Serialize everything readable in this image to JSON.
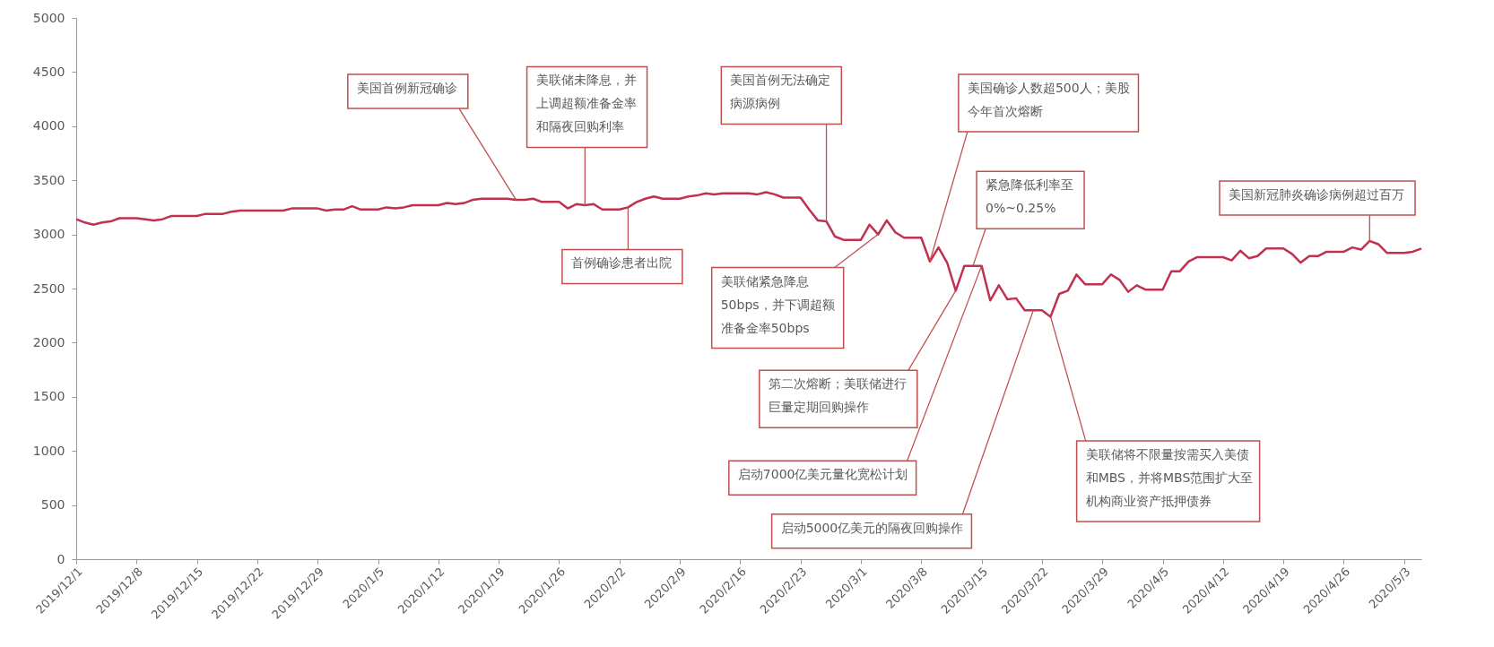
{
  "chart_data": {
    "type": "line",
    "x": [
      "2019-12-01",
      "2019-12-02",
      "2019-12-03",
      "2019-12-04",
      "2019-12-05",
      "2019-12-06",
      "2019-12-07",
      "2019-12-08",
      "2019-12-09",
      "2019-12-10",
      "2019-12-11",
      "2019-12-12",
      "2019-12-13",
      "2019-12-14",
      "2019-12-15",
      "2019-12-16",
      "2019-12-17",
      "2019-12-18",
      "2019-12-19",
      "2019-12-20",
      "2019-12-21",
      "2019-12-22",
      "2019-12-23",
      "2019-12-24",
      "2019-12-25",
      "2019-12-26",
      "2019-12-27",
      "2019-12-28",
      "2019-12-29",
      "2019-12-30",
      "2019-12-31",
      "2020-01-01",
      "2020-01-02",
      "2020-01-03",
      "2020-01-04",
      "2020-01-05",
      "2020-01-06",
      "2020-01-07",
      "2020-01-08",
      "2020-01-09",
      "2020-01-10",
      "2020-01-11",
      "2020-01-12",
      "2020-01-13",
      "2020-01-14",
      "2020-01-15",
      "2020-01-16",
      "2020-01-17",
      "2020-01-18",
      "2020-01-19",
      "2020-01-20",
      "2020-01-21",
      "2020-01-22",
      "2020-01-23",
      "2020-01-24",
      "2020-01-25",
      "2020-01-26",
      "2020-01-27",
      "2020-01-28",
      "2020-01-29",
      "2020-01-30",
      "2020-01-31",
      "2020-02-01",
      "2020-02-02",
      "2020-02-03",
      "2020-02-04",
      "2020-02-05",
      "2020-02-06",
      "2020-02-07",
      "2020-02-08",
      "2020-02-09",
      "2020-02-10",
      "2020-02-11",
      "2020-02-12",
      "2020-02-13",
      "2020-02-14",
      "2020-02-15",
      "2020-02-16",
      "2020-02-17",
      "2020-02-18",
      "2020-02-19",
      "2020-02-20",
      "2020-02-21",
      "2020-02-22",
      "2020-02-23",
      "2020-02-24",
      "2020-02-25",
      "2020-02-26",
      "2020-02-27",
      "2020-02-28",
      "2020-02-29",
      "2020-03-01",
      "2020-03-02",
      "2020-03-03",
      "2020-03-04",
      "2020-03-05",
      "2020-03-06",
      "2020-03-07",
      "2020-03-08",
      "2020-03-09",
      "2020-03-10",
      "2020-03-11",
      "2020-03-12",
      "2020-03-13",
      "2020-03-14",
      "2020-03-15",
      "2020-03-16",
      "2020-03-17",
      "2020-03-18",
      "2020-03-19",
      "2020-03-20",
      "2020-03-21",
      "2020-03-22",
      "2020-03-23",
      "2020-03-24",
      "2020-03-25",
      "2020-03-26",
      "2020-03-27",
      "2020-03-28",
      "2020-03-29",
      "2020-03-30",
      "2020-03-31",
      "2020-04-01",
      "2020-04-02",
      "2020-04-03",
      "2020-04-04",
      "2020-04-05",
      "2020-04-06",
      "2020-04-07",
      "2020-04-08",
      "2020-04-09",
      "2020-04-10",
      "2020-04-11",
      "2020-04-12",
      "2020-04-13",
      "2020-04-14",
      "2020-04-15",
      "2020-04-16",
      "2020-04-17",
      "2020-04-18",
      "2020-04-19",
      "2020-04-20",
      "2020-04-21",
      "2020-04-22",
      "2020-04-23",
      "2020-04-24",
      "2020-04-25",
      "2020-04-26",
      "2020-04-27",
      "2020-04-28",
      "2020-04-29",
      "2020-04-30",
      "2020-05-01",
      "2020-05-02",
      "2020-05-03",
      "2020-05-04",
      "2020-05-05"
    ],
    "series": [
      {
        "color": "#c0304f",
        "values": [
          3140,
          3110,
          3090,
          3110,
          3120,
          3150,
          3150,
          3150,
          3140,
          3130,
          3140,
          3170,
          3170,
          3170,
          3170,
          3190,
          3190,
          3190,
          3210,
          3220,
          3220,
          3220,
          3220,
          3220,
          3220,
          3240,
          3240,
          3240,
          3240,
          3220,
          3230,
          3230,
          3260,
          3230,
          3230,
          3230,
          3250,
          3240,
          3250,
          3270,
          3270,
          3270,
          3270,
          3290,
          3280,
          3290,
          3320,
          3330,
          3330,
          3330,
          3330,
          3320,
          3320,
          3330,
          3300,
          3300,
          3300,
          3240,
          3280,
          3270,
          3280,
          3230,
          3230,
          3230,
          3250,
          3300,
          3330,
          3350,
          3330,
          3330,
          3330,
          3350,
          3360,
          3380,
          3370,
          3380,
          3380,
          3380,
          3380,
          3370,
          3390,
          3370,
          3340,
          3340,
          3340,
          3230,
          3130,
          3120,
          2980,
          2950,
          2950,
          2950,
          3090,
          3000,
          3130,
          3020,
          2970,
          2970,
          2970,
          2750,
          2880,
          2740,
          2480,
          2710,
          2710,
          2710,
          2390,
          2530,
          2400,
          2410,
          2300,
          2300,
          2300,
          2240,
          2450,
          2480,
          2630,
          2540,
          2540,
          2540,
          2630,
          2580,
          2470,
          2530,
          2490,
          2490,
          2490,
          2660,
          2660,
          2750,
          2790,
          2790,
          2790,
          2790,
          2760,
          2850,
          2780,
          2800,
          2870,
          2870,
          2870,
          2820,
          2740,
          2800,
          2800,
          2840,
          2840,
          2840,
          2880,
          2860,
          2940,
          2910,
          2830,
          2830,
          2830,
          2840,
          2870
        ]
      }
    ],
    "xlim": [
      "2019-12-01",
      "2020-05-05"
    ],
    "xticks": [
      {
        "value": "2019-12-01",
        "label": "2019/12/1"
      },
      {
        "value": "2019-12-08",
        "label": "2019/12/8"
      },
      {
        "value": "2019-12-15",
        "label": "2019/12/15"
      },
      {
        "value": "2019-12-22",
        "label": "2019/12/22"
      },
      {
        "value": "2019-12-29",
        "label": "2019/12/29"
      },
      {
        "value": "2020-01-05",
        "label": "2020/1/5"
      },
      {
        "value": "2020-01-12",
        "label": "2020/1/12"
      },
      {
        "value": "2020-01-19",
        "label": "2020/1/19"
      },
      {
        "value": "2020-01-26",
        "label": "2020/1/26"
      },
      {
        "value": "2020-02-02",
        "label": "2020/2/2"
      },
      {
        "value": "2020-02-09",
        "label": "2020/2/9"
      },
      {
        "value": "2020-02-16",
        "label": "2020/2/16"
      },
      {
        "value": "2020-02-23",
        "label": "2020/2/23"
      },
      {
        "value": "2020-03-01",
        "label": "2020/3/1"
      },
      {
        "value": "2020-03-08",
        "label": "2020/3/8"
      },
      {
        "value": "2020-03-15",
        "label": "2020/3/15"
      },
      {
        "value": "2020-03-22",
        "label": "2020/3/22"
      },
      {
        "value": "2020-03-29",
        "label": "2020/3/29"
      },
      {
        "value": "2020-04-05",
        "label": "2020/4/5"
      },
      {
        "value": "2020-04-12",
        "label": "2020/4/12"
      },
      {
        "value": "2020-04-19",
        "label": "2020/4/19"
      },
      {
        "value": "2020-04-26",
        "label": "2020/4/26"
      },
      {
        "value": "2020-05-03",
        "label": "2020/5/3"
      }
    ],
    "ylim": [
      0,
      5000
    ],
    "yticks": [
      0,
      500,
      1000,
      1500,
      2000,
      2500,
      3000,
      3500,
      4000,
      4500,
      5000
    ],
    "annotations": [
      {
        "text": "美国首例新冠确诊",
        "x": "2020-01-21",
        "y": 3320
      },
      {
        "text": "美联储未降息，并上调超额准备金率和隔夜回购利率",
        "x": "2020-01-29",
        "y": 3270
      },
      {
        "text": "首例确诊患者出院",
        "x": "2020-02-03",
        "y": 3250
      },
      {
        "text": "美国首例无法确定病源病例",
        "x": "2020-02-26",
        "y": 3120
      },
      {
        "text": "美联储紧急降息50bps，并下调超额准备金率50bps",
        "x": "2020-03-03",
        "y": 3000
      },
      {
        "text": "美国确诊人数超500人；美股今年首次熔断",
        "x": "2020-03-09",
        "y": 2750
      },
      {
        "text": "紧急降低利率至0%~0.25%",
        "x": "2020-03-14",
        "y": 2710
      },
      {
        "text": "第二次熔断；美联储进行巨量定期回购操作",
        "x": "2020-03-12",
        "y": 2480
      },
      {
        "text": "启动7000亿美元量化宽松计划",
        "x": "2020-03-15",
        "y": 2710
      },
      {
        "text": "启动5000亿美元的隔夜回购操作",
        "x": "2020-03-21",
        "y": 2300
      },
      {
        "text": "美联储将不限量按需买入美债和MBS，并将MBS范围扩大至机构商业资产抵押债券",
        "x": "2020-03-23",
        "y": 2240
      },
      {
        "text": "美国新冠肺炎确诊病例超过百万",
        "x": "2020-04-29",
        "y": 2940
      }
    ]
  }
}
